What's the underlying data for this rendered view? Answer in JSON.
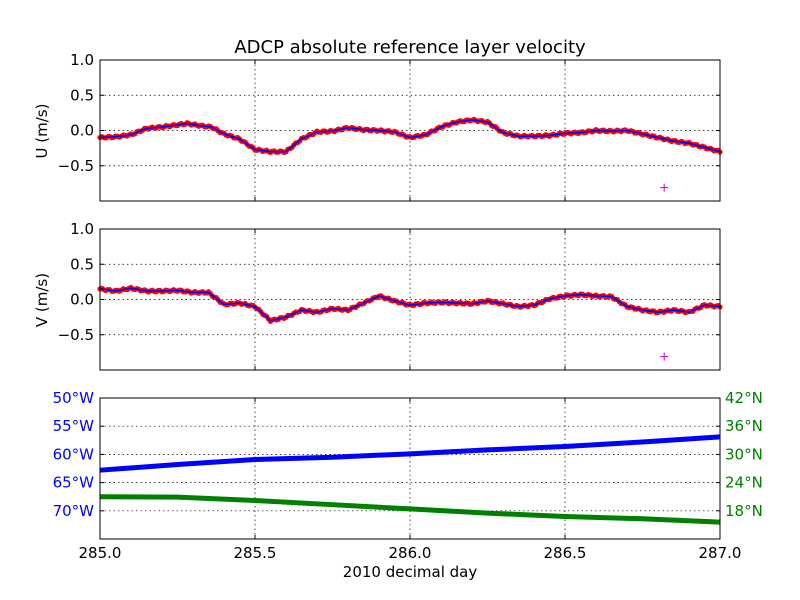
{
  "chart_data": [
    {
      "type": "line",
      "title": "ADCP absolute reference layer velocity",
      "ylabel": "U (m/s)",
      "xlim": [
        285.0,
        287.0
      ],
      "ylim": [
        -1.0,
        1.0
      ],
      "y_ticks": [
        "1.0",
        "0.5",
        "0.0",
        "−0.5"
      ],
      "y_tick_values": [
        1.0,
        0.5,
        0.0,
        -0.5
      ],
      "x_tick_values": [
        285.0,
        285.5,
        286.0,
        286.5,
        287.0
      ],
      "grid": true,
      "series": [
        {
          "color": "#0000ff",
          "marker_color": "#ff0000",
          "x": [
            285.0,
            285.05,
            285.1,
            285.15,
            285.2,
            285.25,
            285.28,
            285.32,
            285.36,
            285.4,
            285.45,
            285.5,
            285.55,
            285.6,
            285.65,
            285.7,
            285.75,
            285.8,
            285.85,
            285.9,
            285.95,
            286.0,
            286.05,
            286.1,
            286.15,
            286.2,
            286.25,
            286.3,
            286.35,
            286.4,
            286.45,
            286.5,
            286.55,
            286.6,
            286.65,
            286.7,
            286.75,
            286.8,
            286.85,
            286.9,
            286.95,
            287.0
          ],
          "values": [
            -0.1,
            -0.09,
            -0.06,
            0.03,
            0.05,
            0.08,
            0.1,
            0.07,
            0.05,
            -0.05,
            -0.12,
            -0.27,
            -0.3,
            -0.3,
            -0.12,
            -0.02,
            -0.01,
            0.04,
            0.01,
            0.0,
            -0.02,
            -0.1,
            -0.06,
            0.05,
            0.12,
            0.15,
            0.12,
            -0.03,
            -0.08,
            -0.08,
            -0.07,
            -0.04,
            -0.03,
            0.0,
            -0.01,
            0.0,
            -0.05,
            -0.1,
            -0.15,
            -0.18,
            -0.24,
            -0.3
          ]
        },
        {
          "name": "outlier",
          "color": "#cc00cc",
          "marker": "+",
          "x": [
            286.82
          ],
          "values": [
            -0.81
          ]
        }
      ]
    },
    {
      "type": "line",
      "ylabel": "V (m/s)",
      "xlim": [
        285.0,
        287.0
      ],
      "ylim": [
        -1.0,
        1.0
      ],
      "y_ticks": [
        "1.0",
        "0.5",
        "0.0",
        "−0.5"
      ],
      "y_tick_values": [
        1.0,
        0.5,
        0.0,
        -0.5
      ],
      "x_tick_values": [
        285.0,
        285.5,
        286.0,
        286.5,
        287.0
      ],
      "grid": true,
      "series": [
        {
          "color": "#0000ff",
          "marker_color": "#ff0000",
          "x": [
            285.0,
            285.05,
            285.1,
            285.15,
            285.2,
            285.25,
            285.3,
            285.35,
            285.4,
            285.45,
            285.5,
            285.55,
            285.6,
            285.65,
            285.7,
            285.75,
            285.8,
            285.85,
            285.9,
            285.95,
            286.0,
            286.05,
            286.1,
            286.15,
            286.2,
            286.25,
            286.3,
            286.35,
            286.4,
            286.45,
            286.5,
            286.55,
            286.6,
            286.65,
            286.7,
            286.75,
            286.8,
            286.85,
            286.9,
            286.95,
            287.0
          ],
          "values": [
            0.15,
            0.12,
            0.16,
            0.12,
            0.12,
            0.13,
            0.1,
            0.1,
            -0.07,
            -0.05,
            -0.1,
            -0.3,
            -0.25,
            -0.15,
            -0.18,
            -0.13,
            -0.15,
            -0.05,
            0.05,
            -0.02,
            -0.08,
            -0.05,
            -0.04,
            -0.05,
            -0.06,
            -0.02,
            -0.06,
            -0.1,
            -0.08,
            0.01,
            0.05,
            0.07,
            0.05,
            0.04,
            -0.1,
            -0.15,
            -0.18,
            -0.15,
            -0.18,
            -0.08,
            -0.1
          ]
        },
        {
          "name": "outlier",
          "color": "#cc00cc",
          "marker": "+",
          "x": [
            286.82
          ],
          "values": [
            -0.81
          ]
        }
      ]
    },
    {
      "type": "line",
      "xlabel": "2010 decimal day",
      "xlim": [
        285.0,
        287.0
      ],
      "x_ticks": [
        "285.0",
        "285.5",
        "286.0",
        "286.5",
        "287.0"
      ],
      "x_tick_values": [
        285.0,
        285.5,
        286.0,
        286.5,
        287.0
      ],
      "grid": true,
      "left_axis": {
        "color": "#0000ff",
        "ylim": [
          -75,
          -50
        ],
        "ticks": [
          "50°W",
          "55°W",
          "60°W",
          "65°W",
          "70°W"
        ],
        "tick_values": [
          -50,
          -55,
          -60,
          -65,
          -70
        ]
      },
      "right_axis": {
        "color": "#008000",
        "ylim": [
          12,
          42
        ],
        "ticks": [
          "42°N",
          "36°N",
          "30°N",
          "24°N",
          "18°N"
        ],
        "tick_values": [
          42,
          36,
          30,
          24,
          18
        ]
      },
      "series": [
        {
          "axis": "left",
          "color": "#0000ff",
          "x": [
            285.0,
            285.25,
            285.5,
            285.75,
            286.0,
            286.25,
            286.5,
            286.75,
            287.0
          ],
          "values": [
            -62.8,
            -61.8,
            -60.9,
            -60.5,
            -59.9,
            -59.2,
            -58.6,
            -57.8,
            -56.9
          ]
        },
        {
          "axis": "right",
          "color": "#008000",
          "x": [
            285.0,
            285.25,
            285.5,
            285.75,
            286.0,
            286.25,
            286.5,
            286.75,
            287.0
          ],
          "values": [
            21.0,
            20.9,
            20.2,
            19.3,
            18.4,
            17.5,
            16.8,
            16.3,
            15.6
          ]
        }
      ]
    }
  ]
}
